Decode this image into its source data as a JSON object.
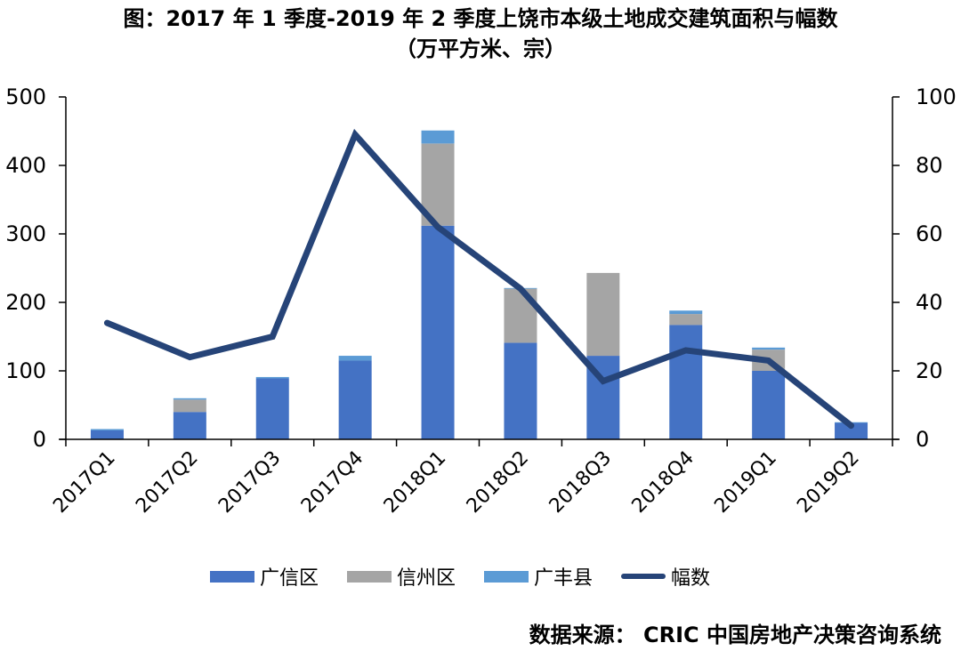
{
  "title": "图：2017 年 1 季度-2019 年 2 季度上饶市本级土地成交建筑面积与幅数",
  "subtitle": "（万平方米、宗）",
  "source": "数据来源： CRIC 中国房地产决策咨询系统",
  "colors": {
    "guangxin": "#4472c4",
    "xinzhou": "#a5a5a5",
    "guangfeng": "#5b9bd5",
    "fushu": "#264478"
  },
  "legend": [
    {
      "label": "广信区",
      "type": "bar",
      "color": "#4472c4"
    },
    {
      "label": "信州区",
      "type": "bar",
      "color": "#a5a5a5"
    },
    {
      "label": "广丰县",
      "type": "bar",
      "color": "#5b9bd5"
    },
    {
      "label": "幅数",
      "type": "line",
      "color": "#264478"
    }
  ],
  "chart_data": {
    "type": "bar",
    "stacked": true,
    "title": "图：2017 年 1 季度-2019 年 2 季度上饶市本级土地成交建筑面积与幅数",
    "subtitle": "（万平方米、宗）",
    "categories": [
      "2017Q1",
      "2017Q2",
      "2017Q3",
      "2017Q4",
      "2018Q1",
      "2018Q2",
      "2018Q3",
      "2018Q4",
      "2019Q1",
      "2019Q2"
    ],
    "series": [
      {
        "name": "广信区",
        "type": "bar",
        "axis": "left",
        "values": [
          13,
          40,
          89,
          115,
          312,
          141,
          122,
          167,
          100,
          24
        ]
      },
      {
        "name": "信州区",
        "type": "bar",
        "axis": "left",
        "values": [
          0,
          18,
          0,
          0,
          120,
          79,
          121,
          16,
          31,
          0
        ]
      },
      {
        "name": "广丰县",
        "type": "bar",
        "axis": "left",
        "values": [
          2,
          2,
          2,
          7,
          19,
          1,
          0,
          5,
          3,
          1
        ]
      },
      {
        "name": "幅数",
        "type": "line",
        "axis": "right",
        "values": [
          34,
          24,
          30,
          89,
          62,
          44,
          17,
          26,
          23,
          4
        ]
      }
    ],
    "xlabel": "",
    "ylabel": "",
    "ylim": [
      0,
      500
    ],
    "yticks": [
      0,
      100,
      200,
      300,
      400,
      500
    ],
    "y2lim": [
      0,
      100
    ],
    "y2ticks": [
      0,
      20,
      40,
      60,
      80,
      100
    ],
    "grid": false,
    "legend_position": "bottom"
  }
}
